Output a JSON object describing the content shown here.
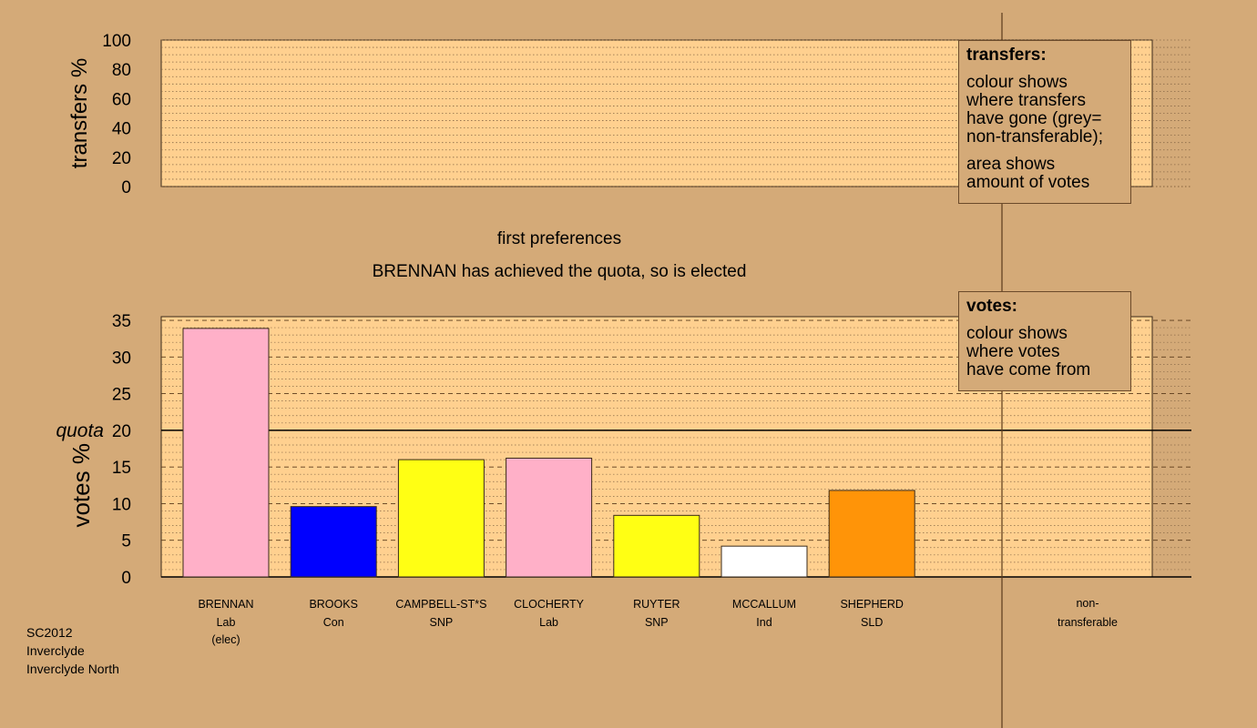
{
  "chart_data": [
    {
      "type": "bar",
      "panel": "transfers",
      "ylabel": "transfers %",
      "ylim": [
        0,
        100
      ],
      "yticks": [
        0,
        20,
        40,
        60,
        80,
        100
      ],
      "categories": [],
      "values": []
    },
    {
      "type": "bar",
      "panel": "votes",
      "title": "first preferences",
      "subtitle": "BRENNAN has achieved the quota, so is elected",
      "ylabel": "votes %",
      "ylim": [
        0,
        35
      ],
      "yticks": [
        0,
        5,
        10,
        15,
        20,
        25,
        30,
        35
      ],
      "quota_label": "quota",
      "quota": 20,
      "categories": [
        {
          "name": "BRENNAN",
          "party": "Lab",
          "note": "(elec)"
        },
        {
          "name": "BROOKS",
          "party": "Con",
          "note": ""
        },
        {
          "name": "CAMPBELL-ST*S",
          "party": "SNP",
          "note": ""
        },
        {
          "name": "CLOCHERTY",
          "party": "Lab",
          "note": ""
        },
        {
          "name": "RUYTER",
          "party": "SNP",
          "note": ""
        },
        {
          "name": "MCCALLUM",
          "party": "Ind",
          "note": ""
        },
        {
          "name": "SHEPHERD",
          "party": "SLD",
          "note": ""
        }
      ],
      "values": [
        33.9,
        9.6,
        16.0,
        16.2,
        8.4,
        4.2,
        11.8
      ],
      "colors": [
        "#ffb0c8",
        "#0000ff",
        "#ffff14",
        "#ffb0c8",
        "#ffff14",
        "#ffffff",
        "#ff9408"
      ],
      "extra_category": {
        "line1": "non-",
        "line2": "transferable"
      }
    }
  ],
  "legends": {
    "transfers": {
      "title": "transfers:",
      "p1_lines": [
        "colour shows",
        "where transfers",
        "have gone (grey=",
        "non-transferable);"
      ],
      "p2_lines": [
        "area shows",
        "amount of votes"
      ]
    },
    "votes": {
      "title": "votes:",
      "p1_lines": [
        "colour shows",
        "where votes",
        "have come from"
      ]
    }
  },
  "footer": {
    "line1": "SC2012",
    "line2": "Inverclyde",
    "line3": "Inverclyde North"
  },
  "colors": {
    "background": "#d4aa78",
    "plot_fill": "#ffd08f"
  }
}
